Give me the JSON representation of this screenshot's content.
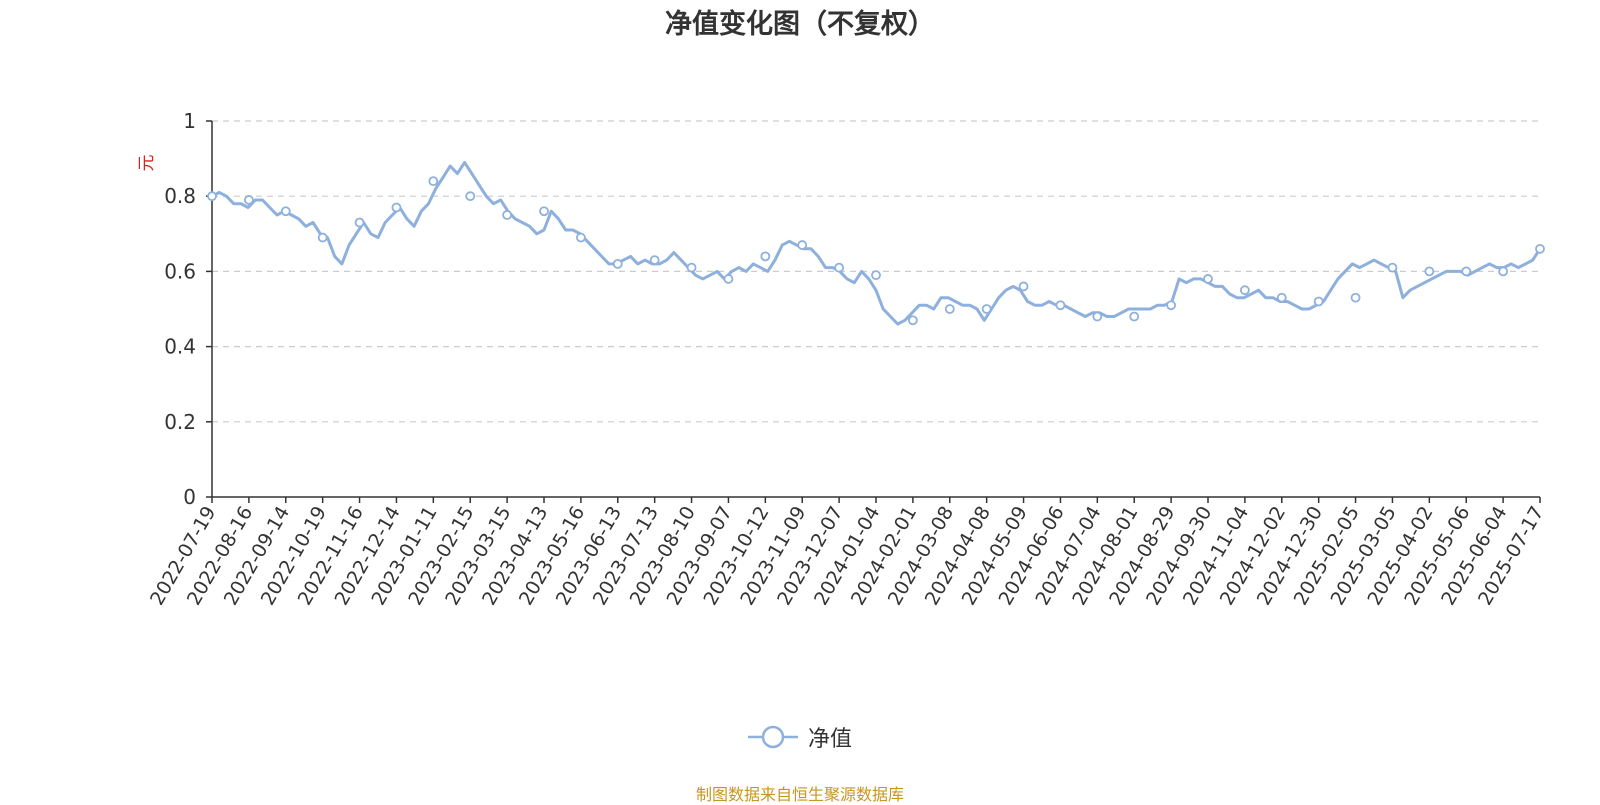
{
  "chart_data": {
    "type": "line",
    "title": "净值变化图（不复权）",
    "ylabel": "元",
    "ylim": [
      0,
      1
    ],
    "yticks": [
      "0",
      "0.2",
      "0.4",
      "0.6",
      "0.8",
      "1"
    ],
    "grid": true,
    "legend_position": "bottom-center",
    "x_tick_labels": [
      "2022-07-19",
      "2022-08-16",
      "2022-09-14",
      "2022-10-19",
      "2022-11-16",
      "2022-12-14",
      "2023-01-11",
      "2023-02-15",
      "2023-03-15",
      "2023-04-13",
      "2023-05-16",
      "2023-06-13",
      "2023-07-13",
      "2023-08-10",
      "2023-09-07",
      "2023-10-12",
      "2023-11-09",
      "2023-12-07",
      "2024-01-04",
      "2024-02-01",
      "2024-03-08",
      "2024-04-08",
      "2024-05-09",
      "2024-06-06",
      "2024-07-04",
      "2024-08-01",
      "2024-08-29",
      "2024-09-30",
      "2024-11-04",
      "2024-12-02",
      "2024-12-30",
      "2025-02-05",
      "2025-03-05",
      "2025-04-02",
      "2025-05-06",
      "2025-06-04",
      "2025-07-17"
    ],
    "series": [
      {
        "name": "净值",
        "color": "#8eb0dc",
        "x": [
          "2022-07-19",
          "2022-08-16",
          "2022-09-14",
          "2022-10-19",
          "2022-11-16",
          "2022-12-14",
          "2023-01-11",
          "2023-02-15",
          "2023-03-15",
          "2023-04-13",
          "2023-05-16",
          "2023-06-13",
          "2023-07-13",
          "2023-08-10",
          "2023-09-07",
          "2023-10-12",
          "2023-11-09",
          "2023-12-07",
          "2024-01-04",
          "2024-02-01",
          "2024-03-08",
          "2024-04-08",
          "2024-05-09",
          "2024-06-06",
          "2024-07-04",
          "2024-08-01",
          "2024-08-29",
          "2024-09-30",
          "2024-11-04",
          "2024-12-02",
          "2024-12-30",
          "2025-02-05",
          "2025-03-05",
          "2025-04-02",
          "2025-05-06",
          "2025-06-04",
          "2025-07-17"
        ],
        "values": [
          0.8,
          0.79,
          0.76,
          0.69,
          0.73,
          0.77,
          0.84,
          0.8,
          0.75,
          0.76,
          0.69,
          0.62,
          0.63,
          0.61,
          0.58,
          0.64,
          0.67,
          0.61,
          0.59,
          0.47,
          0.5,
          0.5,
          0.56,
          0.51,
          0.48,
          0.48,
          0.51,
          0.58,
          0.55,
          0.53,
          0.52,
          0.53,
          0.61,
          0.6,
          0.6,
          0.6,
          0.66
        ],
        "detail_values": [
          0.8,
          0.81,
          0.8,
          0.78,
          0.78,
          0.77,
          0.79,
          0.79,
          0.77,
          0.75,
          0.76,
          0.75,
          0.74,
          0.72,
          0.73,
          0.7,
          0.69,
          0.64,
          0.62,
          0.67,
          0.7,
          0.73,
          0.7,
          0.69,
          0.73,
          0.75,
          0.77,
          0.74,
          0.72,
          0.76,
          0.78,
          0.82,
          0.85,
          0.88,
          0.86,
          0.89,
          0.86,
          0.83,
          0.8,
          0.78,
          0.79,
          0.76,
          0.74,
          0.73,
          0.72,
          0.7,
          0.71,
          0.76,
          0.74,
          0.71,
          0.71,
          0.7,
          0.68,
          0.66,
          0.64,
          0.62,
          0.62,
          0.63,
          0.64,
          0.62,
          0.63,
          0.62,
          0.62,
          0.63,
          0.65,
          0.63,
          0.61,
          0.59,
          0.58,
          0.59,
          0.6,
          0.58,
          0.6,
          0.61,
          0.6,
          0.62,
          0.61,
          0.6,
          0.63,
          0.67,
          0.68,
          0.67,
          0.66,
          0.66,
          0.64,
          0.61,
          0.61,
          0.6,
          0.58,
          0.57,
          0.6,
          0.58,
          0.55,
          0.5,
          0.48,
          0.46,
          0.47,
          0.49,
          0.51,
          0.51,
          0.5,
          0.53,
          0.53,
          0.52,
          0.51,
          0.51,
          0.5,
          0.47,
          0.5,
          0.53,
          0.55,
          0.56,
          0.55,
          0.52,
          0.51,
          0.51,
          0.52,
          0.51,
          0.51,
          0.5,
          0.49,
          0.48,
          0.49,
          0.49,
          0.48,
          0.48,
          0.49,
          0.5,
          0.5,
          0.5,
          0.5,
          0.51,
          0.51,
          0.52,
          0.58,
          0.57,
          0.58,
          0.58,
          0.57,
          0.56,
          0.56,
          0.54,
          0.53,
          0.53,
          0.54,
          0.55,
          0.53,
          0.53,
          0.52,
          0.52,
          0.51,
          0.5,
          0.5,
          0.51,
          0.52,
          0.55,
          0.58,
          0.6,
          0.62,
          0.61,
          0.62,
          0.63,
          0.62,
          0.61,
          0.6,
          0.53,
          0.55,
          0.56,
          0.57,
          0.58,
          0.59,
          0.6,
          0.6,
          0.6,
          0.59,
          0.6,
          0.61,
          0.62,
          0.61,
          0.61,
          0.62,
          0.61,
          0.62,
          0.63,
          0.66
        ]
      }
    ]
  },
  "legend": {
    "label": "净值",
    "icon": "circle-line-icon"
  },
  "source_note": "制图数据来自恒生聚源数据库",
  "colors": {
    "line": "#8eb0dc",
    "axis": "#333333",
    "grid": "#cccccc",
    "ylabel": "#e02020",
    "source": "#c8961e"
  }
}
